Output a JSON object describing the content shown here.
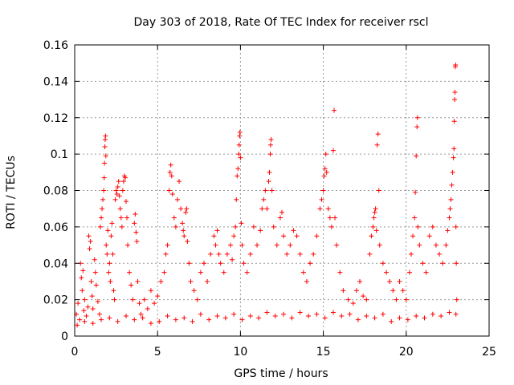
{
  "chart_data": {
    "type": "scatter",
    "title": "Day 303 of 2018, Rate Of TEC Index for receiver rscl",
    "xlabel": "GPS time / hours",
    "ylabel": "ROTI / TECUs",
    "xlim": [
      0,
      25
    ],
    "ylim": [
      0,
      0.16
    ],
    "xticks": [
      0,
      5,
      10,
      15,
      20,
      25
    ],
    "yticks": [
      0,
      0.02,
      0.04,
      0.06,
      0.08,
      0.1,
      0.12,
      0.14,
      0.16
    ],
    "xtick_labels": [
      "0",
      "5",
      "10",
      "15",
      "20",
      "25"
    ],
    "ytick_labels": [
      "0",
      "0.02",
      "0.04",
      "0.06",
      "0.08",
      "0.1",
      "0.12",
      "0.14",
      "0.16"
    ],
    "grid": true,
    "marker": "+",
    "color": "#ff0000",
    "series": [
      {
        "name": "ROTI",
        "points": [
          [
            0.1,
            0.012
          ],
          [
            0.2,
            0.018
          ],
          [
            0.3,
            0.009
          ],
          [
            0.35,
            0.04
          ],
          [
            0.4,
            0.032
          ],
          [
            0.45,
            0.025
          ],
          [
            0.5,
            0.036
          ],
          [
            0.55,
            0.014
          ],
          [
            0.6,
            0.02
          ],
          [
            0.7,
            0.011
          ],
          [
            0.8,
            0.016
          ],
          [
            0.85,
            0.055
          ],
          [
            0.9,
            0.048
          ],
          [
            0.95,
            0.052
          ],
          [
            1.0,
            0.03
          ],
          [
            1.05,
            0.022
          ],
          [
            1.1,
            0.015
          ],
          [
            1.2,
            0.042
          ],
          [
            1.25,
            0.035
          ],
          [
            1.3,
            0.028
          ],
          [
            1.4,
            0.019
          ],
          [
            1.5,
            0.012
          ],
          [
            1.55,
            0.06
          ],
          [
            1.6,
            0.065
          ],
          [
            1.65,
            0.07
          ],
          [
            1.7,
            0.075
          ],
          [
            1.75,
            0.08
          ],
          [
            1.78,
            0.087
          ],
          [
            1.8,
            0.095
          ],
          [
            1.82,
            0.104
          ],
          [
            1.84,
            0.108
          ],
          [
            1.86,
            0.11
          ],
          [
            1.88,
            0.099
          ],
          [
            1.9,
            0.05
          ],
          [
            1.95,
            0.045
          ],
          [
            2.0,
            0.058
          ],
          [
            2.05,
            0.035
          ],
          [
            2.1,
            0.04
          ],
          [
            2.15,
            0.03
          ],
          [
            2.2,
            0.055
          ],
          [
            2.25,
            0.062
          ],
          [
            2.3,
            0.045
          ],
          [
            2.35,
            0.025
          ],
          [
            2.4,
            0.02
          ],
          [
            2.45,
            0.075
          ],
          [
            2.5,
            0.08
          ],
          [
            2.55,
            0.078
          ],
          [
            2.6,
            0.082
          ],
          [
            2.65,
            0.085
          ],
          [
            2.7,
            0.077
          ],
          [
            2.75,
            0.07
          ],
          [
            2.8,
            0.065
          ],
          [
            2.85,
            0.06
          ],
          [
            2.9,
            0.08
          ],
          [
            2.95,
            0.085
          ],
          [
            3.0,
            0.088
          ],
          [
            3.05,
            0.087
          ],
          [
            3.1,
            0.074
          ],
          [
            3.15,
            0.065
          ],
          [
            3.2,
            0.05
          ],
          [
            3.3,
            0.035
          ],
          [
            3.4,
            0.028
          ],
          [
            3.5,
            0.02
          ],
          [
            3.6,
            0.062
          ],
          [
            3.65,
            0.067
          ],
          [
            3.7,
            0.057
          ],
          [
            3.75,
            0.052
          ],
          [
            3.8,
            0.03
          ],
          [
            3.9,
            0.018
          ],
          [
            4.0,
            0.012
          ],
          [
            4.2,
            0.02
          ],
          [
            4.4,
            0.015
          ],
          [
            4.6,
            0.025
          ],
          [
            4.8,
            0.018
          ],
          [
            5.0,
            0.022
          ],
          [
            5.2,
            0.03
          ],
          [
            5.4,
            0.035
          ],
          [
            5.5,
            0.045
          ],
          [
            5.6,
            0.05
          ],
          [
            5.7,
            0.08
          ],
          [
            5.75,
            0.09
          ],
          [
            5.8,
            0.094
          ],
          [
            5.85,
            0.088
          ],
          [
            5.9,
            0.078
          ],
          [
            6.0,
            0.065
          ],
          [
            6.1,
            0.06
          ],
          [
            6.2,
            0.075
          ],
          [
            6.3,
            0.085
          ],
          [
            6.4,
            0.07
          ],
          [
            6.5,
            0.062
          ],
          [
            6.55,
            0.058
          ],
          [
            6.6,
            0.055
          ],
          [
            6.7,
            0.068
          ],
          [
            6.75,
            0.07
          ],
          [
            6.8,
            0.052
          ],
          [
            6.9,
            0.04
          ],
          [
            7.0,
            0.03
          ],
          [
            7.2,
            0.025
          ],
          [
            7.4,
            0.02
          ],
          [
            7.6,
            0.035
          ],
          [
            7.8,
            0.04
          ],
          [
            8.0,
            0.03
          ],
          [
            8.2,
            0.045
          ],
          [
            8.4,
            0.055
          ],
          [
            8.5,
            0.05
          ],
          [
            8.6,
            0.058
          ],
          [
            8.7,
            0.045
          ],
          [
            8.8,
            0.04
          ],
          [
            9.0,
            0.035
          ],
          [
            9.2,
            0.045
          ],
          [
            9.4,
            0.05
          ],
          [
            9.5,
            0.042
          ],
          [
            9.6,
            0.055
          ],
          [
            9.7,
            0.06
          ],
          [
            9.75,
            0.075
          ],
          [
            9.8,
            0.088
          ],
          [
            9.85,
            0.092
          ],
          [
            9.9,
            0.1
          ],
          [
            9.92,
            0.105
          ],
          [
            9.95,
            0.11
          ],
          [
            9.97,
            0.112
          ],
          [
            10.0,
            0.098
          ],
          [
            10.05,
            0.062
          ],
          [
            10.1,
            0.05
          ],
          [
            10.2,
            0.04
          ],
          [
            10.4,
            0.035
          ],
          [
            10.6,
            0.045
          ],
          [
            10.8,
            0.06
          ],
          [
            11.0,
            0.05
          ],
          [
            11.2,
            0.058
          ],
          [
            11.3,
            0.07
          ],
          [
            11.4,
            0.075
          ],
          [
            11.5,
            0.08
          ],
          [
            11.6,
            0.07
          ],
          [
            11.7,
            0.085
          ],
          [
            11.75,
            0.09
          ],
          [
            11.8,
            0.1
          ],
          [
            11.82,
            0.105
          ],
          [
            11.85,
            0.108
          ],
          [
            11.9,
            0.08
          ],
          [
            12.0,
            0.06
          ],
          [
            12.2,
            0.05
          ],
          [
            12.4,
            0.065
          ],
          [
            12.5,
            0.068
          ],
          [
            12.6,
            0.055
          ],
          [
            12.8,
            0.045
          ],
          [
            13.0,
            0.05
          ],
          [
            13.2,
            0.058
          ],
          [
            13.4,
            0.055
          ],
          [
            13.6,
            0.045
          ],
          [
            13.8,
            0.035
          ],
          [
            14.0,
            0.03
          ],
          [
            14.2,
            0.04
          ],
          [
            14.4,
            0.045
          ],
          [
            14.6,
            0.055
          ],
          [
            14.8,
            0.07
          ],
          [
            14.9,
            0.075
          ],
          [
            15.0,
            0.08
          ],
          [
            15.05,
            0.088
          ],
          [
            15.1,
            0.092
          ],
          [
            15.15,
            0.1
          ],
          [
            15.2,
            0.09
          ],
          [
            15.3,
            0.07
          ],
          [
            15.4,
            0.065
          ],
          [
            15.5,
            0.06
          ],
          [
            15.6,
            0.102
          ],
          [
            15.65,
            0.124
          ],
          [
            15.7,
            0.065
          ],
          [
            15.8,
            0.05
          ],
          [
            16.0,
            0.035
          ],
          [
            16.2,
            0.025
          ],
          [
            16.5,
            0.02
          ],
          [
            16.8,
            0.018
          ],
          [
            17.0,
            0.025
          ],
          [
            17.2,
            0.03
          ],
          [
            17.4,
            0.022
          ],
          [
            17.6,
            0.02
          ],
          [
            17.8,
            0.045
          ],
          [
            17.9,
            0.055
          ],
          [
            18.0,
            0.06
          ],
          [
            18.05,
            0.065
          ],
          [
            18.1,
            0.068
          ],
          [
            18.15,
            0.07
          ],
          [
            18.2,
            0.058
          ],
          [
            18.25,
            0.105
          ],
          [
            18.3,
            0.111
          ],
          [
            18.35,
            0.08
          ],
          [
            18.4,
            0.05
          ],
          [
            18.6,
            0.04
          ],
          [
            18.8,
            0.035
          ],
          [
            19.0,
            0.03
          ],
          [
            19.2,
            0.025
          ],
          [
            19.4,
            0.02
          ],
          [
            19.6,
            0.03
          ],
          [
            19.8,
            0.025
          ],
          [
            20.0,
            0.02
          ],
          [
            20.2,
            0.035
          ],
          [
            20.3,
            0.045
          ],
          [
            20.4,
            0.055
          ],
          [
            20.5,
            0.065
          ],
          [
            20.55,
            0.079
          ],
          [
            20.6,
            0.099
          ],
          [
            20.65,
            0.115
          ],
          [
            20.68,
            0.12
          ],
          [
            20.7,
            0.06
          ],
          [
            20.8,
            0.05
          ],
          [
            21.0,
            0.04
          ],
          [
            21.2,
            0.035
          ],
          [
            21.4,
            0.055
          ],
          [
            21.6,
            0.06
          ],
          [
            21.8,
            0.05
          ],
          [
            22.0,
            0.045
          ],
          [
            22.2,
            0.04
          ],
          [
            22.4,
            0.05
          ],
          [
            22.5,
            0.058
          ],
          [
            22.6,
            0.065
          ],
          [
            22.65,
            0.07
          ],
          [
            22.7,
            0.075
          ],
          [
            22.75,
            0.083
          ],
          [
            22.8,
            0.09
          ],
          [
            22.85,
            0.098
          ],
          [
            22.88,
            0.103
          ],
          [
            22.9,
            0.118
          ],
          [
            22.92,
            0.13
          ],
          [
            22.94,
            0.134
          ],
          [
            22.96,
            0.148
          ],
          [
            22.98,
            0.149
          ],
          [
            23.0,
            0.06
          ],
          [
            23.02,
            0.04
          ],
          [
            23.05,
            0.02
          ],
          [
            0.15,
            0.006
          ],
          [
            0.6,
            0.008
          ],
          [
            1.1,
            0.007
          ],
          [
            1.6,
            0.009
          ],
          [
            2.1,
            0.01
          ],
          [
            2.6,
            0.008
          ],
          [
            3.1,
            0.011
          ],
          [
            3.6,
            0.009
          ],
          [
            4.1,
            0.01
          ],
          [
            4.6,
            0.007
          ],
          [
            5.1,
            0.008
          ],
          [
            5.6,
            0.011
          ],
          [
            6.1,
            0.009
          ],
          [
            6.6,
            0.01
          ],
          [
            7.1,
            0.008
          ],
          [
            7.6,
            0.012
          ],
          [
            8.1,
            0.009
          ],
          [
            8.6,
            0.011
          ],
          [
            9.1,
            0.01
          ],
          [
            9.6,
            0.012
          ],
          [
            10.1,
            0.009
          ],
          [
            10.6,
            0.011
          ],
          [
            11.1,
            0.01
          ],
          [
            11.6,
            0.013
          ],
          [
            12.1,
            0.011
          ],
          [
            12.6,
            0.012
          ],
          [
            13.1,
            0.01
          ],
          [
            13.6,
            0.013
          ],
          [
            14.1,
            0.011
          ],
          [
            14.6,
            0.012
          ],
          [
            15.1,
            0.01
          ],
          [
            15.6,
            0.013
          ],
          [
            16.1,
            0.011
          ],
          [
            16.6,
            0.012
          ],
          [
            17.1,
            0.009
          ],
          [
            17.6,
            0.011
          ],
          [
            18.1,
            0.01
          ],
          [
            18.6,
            0.012
          ],
          [
            19.1,
            0.008
          ],
          [
            19.6,
            0.01
          ],
          [
            20.1,
            0.009
          ],
          [
            20.6,
            0.011
          ],
          [
            21.1,
            0.01
          ],
          [
            21.6,
            0.012
          ],
          [
            22.1,
            0.011
          ],
          [
            22.6,
            0.013
          ],
          [
            23.0,
            0.012
          ]
        ]
      }
    ]
  }
}
